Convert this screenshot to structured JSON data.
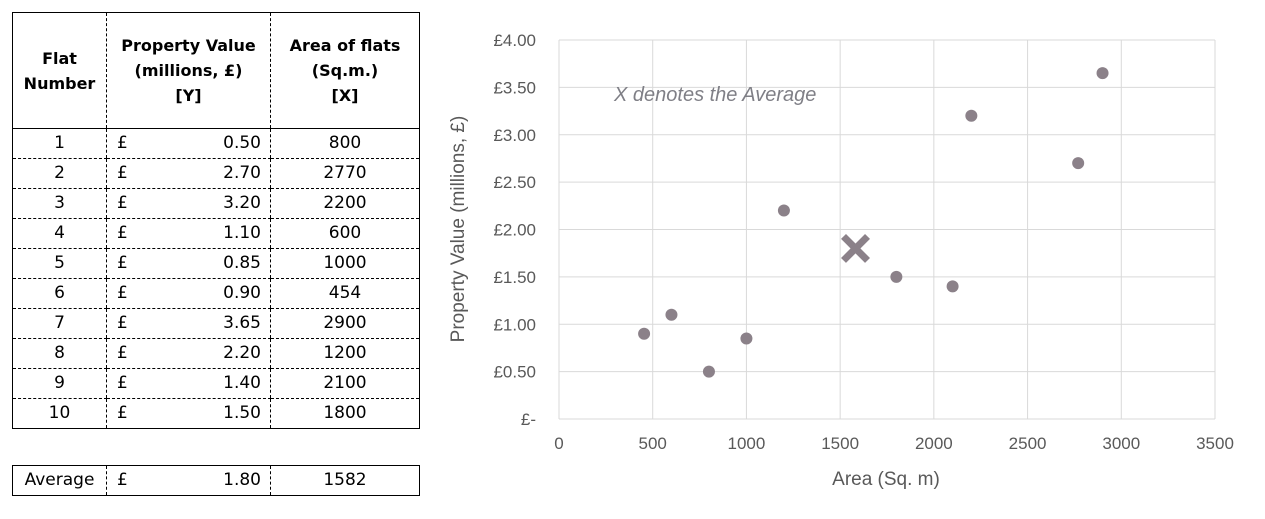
{
  "table": {
    "headers": {
      "flat": [
        "Flat",
        "Number"
      ],
      "value": [
        "Property Value",
        "(millions, £)",
        "[Y]"
      ],
      "area": [
        "Area of flats",
        "(Sq.m.)",
        "[X]"
      ]
    },
    "currency_symbol": "£",
    "rows": [
      {
        "flat": "1",
        "value": "0.50",
        "area": "800"
      },
      {
        "flat": "2",
        "value": "2.70",
        "area": "2770"
      },
      {
        "flat": "3",
        "value": "3.20",
        "area": "2200"
      },
      {
        "flat": "4",
        "value": "1.10",
        "area": "600"
      },
      {
        "flat": "5",
        "value": "0.85",
        "area": "1000"
      },
      {
        "flat": "6",
        "value": "0.90",
        "area": "454"
      },
      {
        "flat": "7",
        "value": "3.65",
        "area": "2900"
      },
      {
        "flat": "8",
        "value": "2.20",
        "area": "1200"
      },
      {
        "flat": "9",
        "value": "1.40",
        "area": "2100"
      },
      {
        "flat": "10",
        "value": "1.50",
        "area": "1800"
      }
    ],
    "average": {
      "label": "Average",
      "value": "1.80",
      "area": "1582"
    }
  },
  "chart_data": {
    "type": "scatter",
    "xlabel": "Area (Sq. m)",
    "ylabel": "Property Value (millions, £)",
    "xlim": [
      0,
      3500
    ],
    "ylim": [
      0,
      4
    ],
    "x_ticks": [
      0,
      500,
      1000,
      1500,
      2000,
      2500,
      3000,
      3500
    ],
    "x_tick_labels": [
      "0",
      "500",
      "1000",
      "1500",
      "2000",
      "2500",
      "3000",
      "3500"
    ],
    "y_ticks": [
      0,
      0.5,
      1,
      1.5,
      2,
      2.5,
      3,
      3.5,
      4
    ],
    "y_tick_labels": [
      "£-",
      "£0.50",
      "£1.00",
      "£1.50",
      "£2.00",
      "£2.50",
      "£3.00",
      "£3.50",
      "£4.00"
    ],
    "grid": true,
    "points": [
      {
        "x": 800,
        "y": 0.5
      },
      {
        "x": 2770,
        "y": 2.7
      },
      {
        "x": 2200,
        "y": 3.2
      },
      {
        "x": 600,
        "y": 1.1
      },
      {
        "x": 1000,
        "y": 0.85
      },
      {
        "x": 454,
        "y": 0.9
      },
      {
        "x": 2900,
        "y": 3.65
      },
      {
        "x": 1200,
        "y": 2.2
      },
      {
        "x": 2100,
        "y": 1.4
      },
      {
        "x": 1800,
        "y": 1.5
      }
    ],
    "average_point": {
      "x": 1582,
      "y": 1.8
    },
    "annotation": "X denotes the Average",
    "colors": {
      "point": "#8b8189",
      "average": "#8b8189",
      "grid": "#d9d9d9",
      "text": "#595959"
    }
  }
}
